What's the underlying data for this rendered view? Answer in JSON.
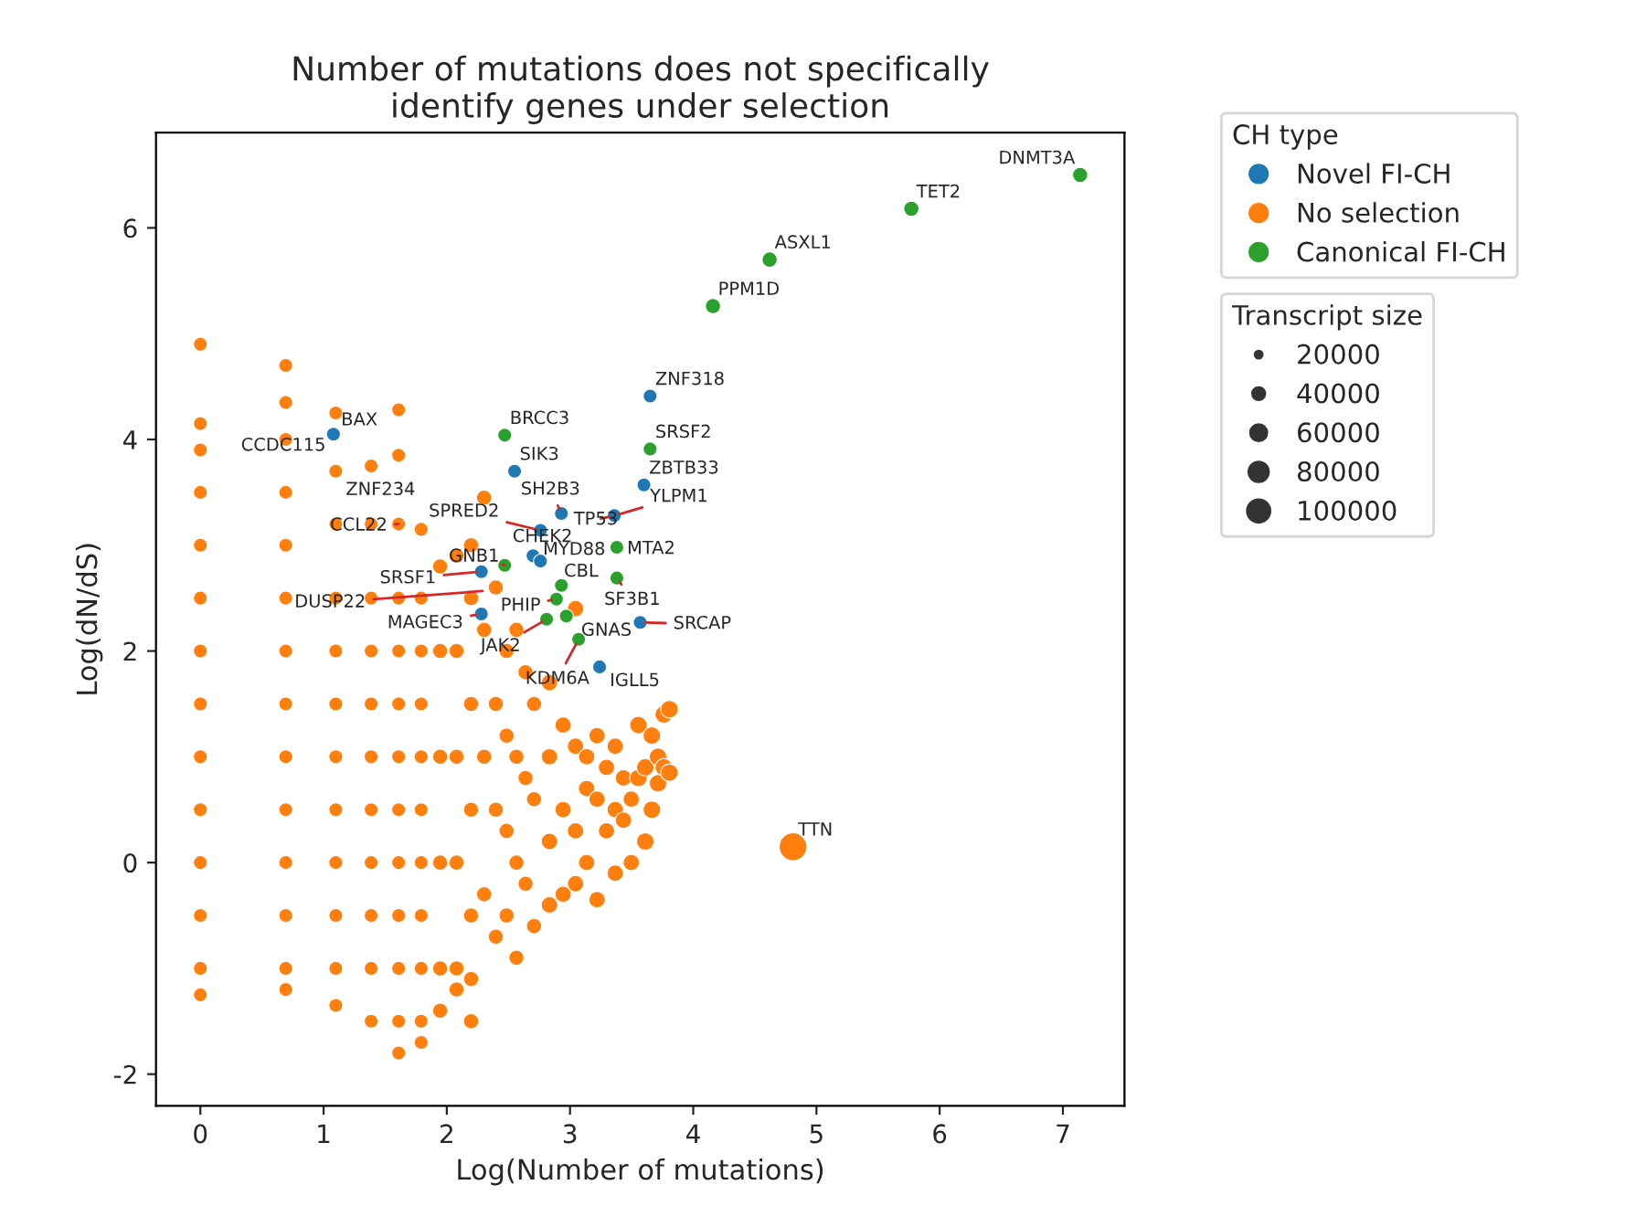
{
  "chart_data": {
    "type": "bubble",
    "title": "Number of mutations does not specifically\nidentify genes under selection",
    "xlabel": "Log(Number of mutations)",
    "ylabel": "Log(dN/dS)",
    "legend_title": "CH type",
    "legend": "top right",
    "grid": false,
    "marker": "circle",
    "xlim": [
      -0.36,
      7.5
    ],
    "ylim": [
      -2.3,
      6.9
    ],
    "xticks": [
      0,
      1,
      2,
      3,
      4,
      5,
      6,
      7
    ],
    "yticks": [
      -2,
      0,
      2,
      4,
      6
    ],
    "size_legend": [
      20000,
      40000,
      60000,
      80000,
      100000
    ],
    "series": [
      {
        "name": "Novel FI-CH",
        "color": "#1f77b4",
        "x": [
          1.08,
          3.65,
          2.55,
          3.6,
          2.93,
          3.36,
          2.76,
          2.7,
          2.76,
          3.57,
          3.24,
          2.28,
          2.28
        ],
        "values": [
          4.05,
          4.41,
          3.7,
          3.57,
          3.3,
          3.28,
          3.14,
          2.9,
          2.85,
          2.27,
          1.85,
          2.35,
          2.75
        ],
        "sizes": [
          25000,
          25000,
          25000,
          25000,
          25000,
          25000,
          25000,
          25000,
          25000,
          25000,
          25000,
          25000,
          25000
        ]
      },
      {
        "name": "No selection",
        "color": "#ff7f0e",
        "x": [
          0,
          0,
          0,
          0,
          0,
          0,
          0,
          0,
          0,
          0,
          0,
          0,
          0,
          0,
          0.693,
          0.693,
          0.693,
          0.693,
          0.693,
          0.693,
          0.693,
          0.693,
          0.693,
          0.693,
          0.693,
          0.693,
          0.693,
          0.693,
          1.099,
          1.099,
          1.099,
          1.099,
          1.099,
          1.099,
          1.099,
          1.099,
          1.099,
          1.099,
          1.099,
          1.099,
          1.386,
          1.386,
          1.386,
          1.386,
          1.386,
          1.386,
          1.386,
          1.386,
          1.386,
          1.386,
          1.386,
          1.609,
          1.609,
          1.609,
          1.609,
          1.609,
          1.609,
          1.609,
          1.609,
          1.609,
          1.609,
          1.609,
          1.609,
          1.609,
          1.792,
          1.792,
          1.792,
          1.792,
          1.792,
          1.792,
          1.792,
          1.792,
          1.792,
          1.792,
          1.792,
          1.946,
          1.946,
          1.946,
          1.946,
          1.946,
          1.946,
          2.079,
          2.079,
          2.079,
          2.079,
          2.079,
          2.079,
          2.197,
          2.197,
          2.197,
          2.197,
          2.197,
          2.197,
          2.197,
          2.303,
          2.303,
          2.303,
          2.303,
          2.398,
          2.398,
          2.398,
          2.398,
          2.485,
          2.485,
          2.485,
          2.485,
          2.565,
          2.565,
          2.565,
          2.565,
          2.639,
          2.639,
          2.639,
          2.708,
          2.708,
          2.708,
          2.833,
          2.833,
          2.833,
          2.833,
          2.944,
          2.944,
          2.944,
          3.045,
          3.045,
          3.045,
          3.045,
          3.135,
          3.135,
          3.135,
          3.219,
          3.219,
          3.219,
          3.296,
          3.296,
          3.367,
          3.367,
          3.367,
          3.434,
          3.434,
          3.497,
          3.497,
          3.555,
          3.555,
          3.611,
          3.611,
          3.664,
          3.664,
          3.714,
          3.714,
          3.761,
          3.761,
          3.807,
          3.807,
          4.81
        ],
        "values": [
          4.9,
          4.15,
          3.9,
          3.5,
          3.0,
          2.5,
          2.0,
          1.5,
          1.0,
          0.5,
          0,
          -0.5,
          -1.0,
          -1.25,
          4.7,
          4.35,
          4.0,
          3.5,
          3.0,
          2.5,
          2.0,
          1.5,
          1.0,
          0.5,
          0,
          -0.5,
          -1.0,
          -1.2,
          4.25,
          3.7,
          3.2,
          2.5,
          2.0,
          1.5,
          1.0,
          0.5,
          0,
          -0.5,
          -1.0,
          -1.35,
          3.75,
          3.2,
          2.5,
          2.0,
          1.5,
          1.0,
          0.5,
          0,
          -0.5,
          -1.0,
          -1.5,
          4.28,
          3.85,
          3.2,
          2.5,
          2.0,
          1.5,
          1.0,
          0.5,
          0,
          -0.5,
          -1.0,
          -1.5,
          -1.8,
          3.15,
          2.5,
          2.0,
          1.5,
          1.0,
          0.5,
          0,
          -0.5,
          -1.0,
          -1.5,
          -1.7,
          2.8,
          2.0,
          1.0,
          0,
          -1.0,
          -1.4,
          2.9,
          2.0,
          1.0,
          0,
          -1.0,
          -1.2,
          3.0,
          2.5,
          1.5,
          0.5,
          -0.5,
          -1.1,
          -1.5,
          3.45,
          2.2,
          1.0,
          -0.3,
          2.6,
          1.5,
          0.5,
          -0.7,
          2.0,
          1.2,
          0.3,
          -0.5,
          2.2,
          1.0,
          0,
          -0.9,
          1.8,
          0.8,
          -0.2,
          1.5,
          0.6,
          -0.6,
          1.7,
          1.0,
          0.2,
          -0.4,
          1.3,
          0.5,
          -0.3,
          2.4,
          1.1,
          0.3,
          -0.2,
          1.0,
          0.7,
          0.0,
          1.2,
          0.6,
          -0.35,
          0.9,
          0.3,
          1.1,
          0.5,
          -0.1,
          0.8,
          0.4,
          0.6,
          0.0,
          1.3,
          0.8,
          0.9,
          0.2,
          1.2,
          0.5,
          0.75,
          1.0,
          1.4,
          0.9,
          1.45,
          0.85,
          0.15
        ],
        "sizes": [
          25000,
          25000,
          25000,
          25000,
          25000,
          25000,
          25000,
          25000,
          25000,
          25000,
          25000,
          25000,
          25000,
          25000,
          25000,
          25000,
          25000,
          25000,
          25000,
          25000,
          25000,
          25000,
          25000,
          25000,
          25000,
          25000,
          25000,
          25000,
          25000,
          25000,
          25000,
          25000,
          25000,
          25000,
          25000,
          25000,
          25000,
          25000,
          25000,
          25000,
          25000,
          25000,
          25000,
          25000,
          25000,
          25000,
          25000,
          25000,
          25000,
          25000,
          25000,
          25000,
          25000,
          25000,
          25000,
          25000,
          25000,
          25000,
          25000,
          25000,
          25000,
          25000,
          25000,
          25000,
          25000,
          25000,
          25000,
          25000,
          25000,
          25000,
          25000,
          25000,
          25000,
          25000,
          25000,
          30000,
          30000,
          30000,
          30000,
          30000,
          30000,
          30000,
          30000,
          30000,
          30000,
          30000,
          30000,
          30000,
          30000,
          30000,
          30000,
          30000,
          30000,
          30000,
          30000,
          30000,
          30000,
          30000,
          30000,
          30000,
          30000,
          30000,
          30000,
          30000,
          30000,
          30000,
          30000,
          30000,
          30000,
          30000,
          30000,
          30000,
          30000,
          30000,
          30000,
          30000,
          35000,
          35000,
          35000,
          35000,
          35000,
          35000,
          35000,
          35000,
          35000,
          35000,
          35000,
          35000,
          35000,
          35000,
          35000,
          35000,
          35000,
          35000,
          35000,
          35000,
          35000,
          35000,
          35000,
          35000,
          35000,
          35000,
          40000,
          40000,
          40000,
          40000,
          40000,
          40000,
          40000,
          40000,
          40000,
          40000,
          40000,
          40000,
          100000
        ]
      },
      {
        "name": "Canonical FI-CH",
        "color": "#2ca02c",
        "x": [
          7.14,
          5.77,
          4.62,
          4.16,
          2.47,
          3.65,
          3.38,
          3.38,
          2.93,
          2.89,
          2.81,
          3.07,
          2.47,
          2.97
        ],
        "values": [
          6.5,
          6.18,
          5.7,
          5.26,
          4.04,
          3.91,
          2.98,
          2.69,
          2.62,
          2.49,
          2.3,
          2.11,
          2.81,
          2.33
        ],
        "sizes": [
          30000,
          30000,
          30000,
          30000,
          25000,
          25000,
          25000,
          25000,
          25000,
          25000,
          25000,
          25000,
          25000,
          25000
        ]
      }
    ],
    "annotations": [
      "Transcript size",
      {
        "text": "DNMT3A",
        "x": 7.14,
        "y": 6.5
      },
      {
        "text": "TET2",
        "x": 5.77,
        "y": 6.18
      },
      {
        "text": "ASXL1",
        "x": 4.62,
        "y": 5.7
      },
      {
        "text": "PPM1D",
        "x": 4.16,
        "y": 5.26
      },
      {
        "text": "ZNF318",
        "x": 3.65,
        "y": 4.41
      },
      {
        "text": "BAX",
        "x": 1.08,
        "y": 4.05
      },
      {
        "text": "CCDC115",
        "x": 1.08,
        "y": 4.05
      },
      {
        "text": "BRCC3",
        "x": 2.47,
        "y": 4.04
      },
      {
        "text": "SRSF2",
        "x": 3.65,
        "y": 3.91
      },
      {
        "text": "SIK3",
        "x": 2.55,
        "y": 3.7
      },
      {
        "text": "ZBTB33",
        "x": 3.6,
        "y": 3.57
      },
      {
        "text": "ZNF234",
        "x": 1.386,
        "y": 3.2
      },
      {
        "text": "SH2B3",
        "x": 2.93,
        "y": 3.3
      },
      {
        "text": "YLPM1",
        "x": 3.36,
        "y": 3.28
      },
      {
        "text": "SPRED2",
        "x": 2.76,
        "y": 3.14
      },
      {
        "text": "TP53",
        "x": 3.36,
        "y": 3.28
      },
      {
        "text": "CCL22",
        "x": 1.609,
        "y": 3.2
      },
      {
        "text": "CHEK2",
        "x": 2.76,
        "y": 3.14
      },
      {
        "text": "MYD88",
        "x": 2.76,
        "y": 2.85
      },
      {
        "text": "MTA2",
        "x": 3.38,
        "y": 2.98
      },
      {
        "text": "GNB1",
        "x": 2.47,
        "y": 2.81
      },
      {
        "text": "CBL",
        "x": 2.93,
        "y": 2.62
      },
      {
        "text": "SRSF1",
        "x": 2.28,
        "y": 2.75
      },
      {
        "text": "SF3B1",
        "x": 3.38,
        "y": 2.69
      },
      {
        "text": "DUSP22",
        "x": 2.33,
        "y": 2.57
      },
      {
        "text": "PHIP",
        "x": 2.89,
        "y": 2.49
      },
      {
        "text": "MAGEC3",
        "x": 2.28,
        "y": 2.35
      },
      {
        "text": "SRCAP",
        "x": 3.57,
        "y": 2.27
      },
      {
        "text": "GNAS",
        "x": 3.07,
        "y": 2.11
      },
      {
        "text": "JAK2",
        "x": 2.81,
        "y": 2.3
      },
      {
        "text": "KDM6A",
        "x": 3.07,
        "y": 2.11
      },
      {
        "text": "IGLL5",
        "x": 3.24,
        "y": 1.85
      },
      {
        "text": "TTN",
        "x": 4.81,
        "y": 0.15
      }
    ]
  }
}
